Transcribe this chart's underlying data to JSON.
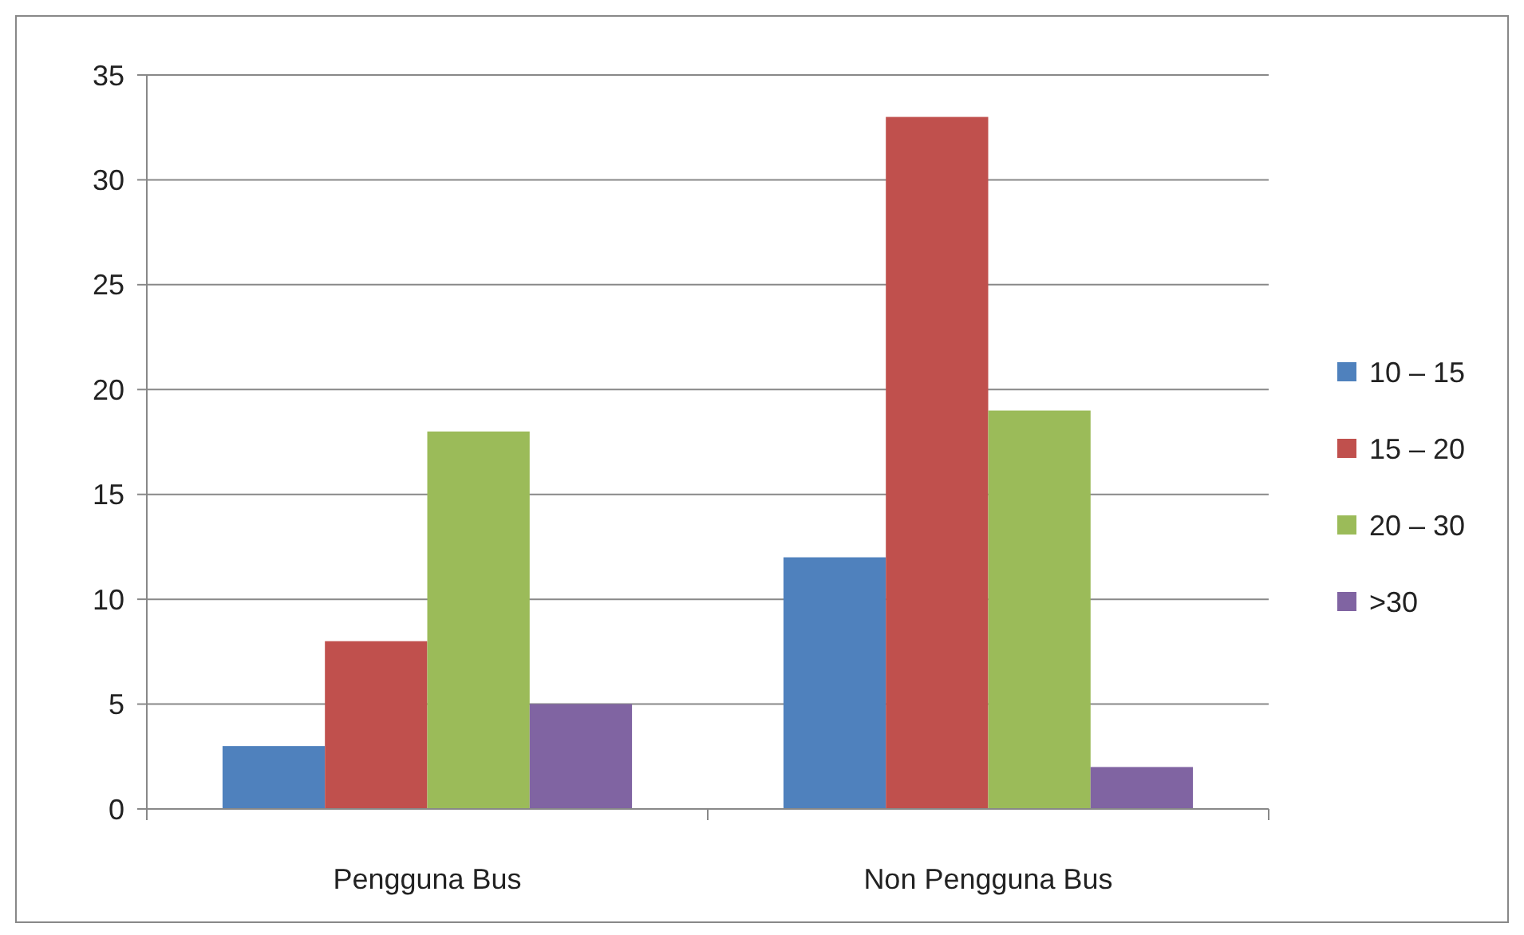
{
  "chart_data": {
    "type": "bar",
    "categories": [
      "Pengguna Bus",
      "Non Pengguna Bus"
    ],
    "series": [
      {
        "name": "10 – 15",
        "color": "#4f81bd",
        "values": [
          3,
          12
        ]
      },
      {
        "name": "15 – 20",
        "color": "#c0504d",
        "values": [
          8,
          33
        ]
      },
      {
        "name": "20 – 30",
        "color": "#9bbb59",
        "values": [
          18,
          19
        ]
      },
      {
        "name": ">30",
        "color": "#8064a2",
        "values": [
          5,
          2
        ]
      }
    ],
    "ylim": [
      0,
      35
    ],
    "yticks": [
      0,
      5,
      10,
      15,
      20,
      25,
      30,
      35
    ],
    "grid": "y",
    "legend": "right"
  }
}
